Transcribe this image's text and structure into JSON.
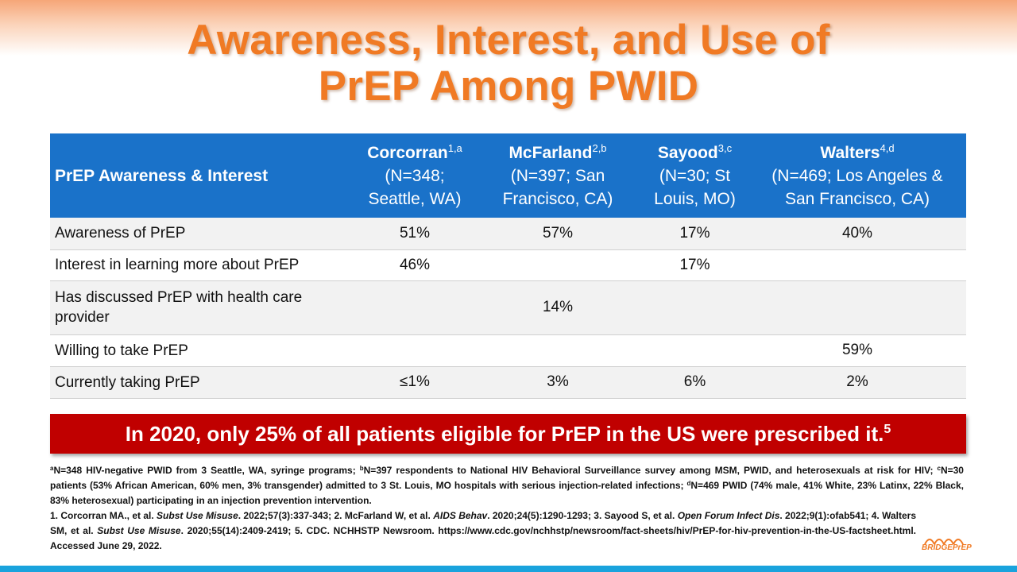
{
  "title": {
    "line1": "Awareness, Interest, and Use of",
    "line2": "PrEP Among PWID"
  },
  "table": {
    "header_label": "PrEP Awareness & Interest",
    "columns": [
      {
        "name": "Corcorran",
        "sup": "1,a",
        "line1": "(N=348;",
        "line2": "Seattle, WA)"
      },
      {
        "name": "McFarland",
        "sup": "2,b",
        "line1": "(N=397; San",
        "line2": "Francisco, CA)"
      },
      {
        "name": "Sayood",
        "sup": "3,c",
        "line1": "(N=30; St",
        "line2": "Louis, MO)"
      },
      {
        "name": "Walters",
        "sup": "4,d",
        "line1": "(N=469; Los Angeles &",
        "line2": "San Francisco, CA)"
      }
    ],
    "rows": [
      {
        "label": "Awareness of PrEP",
        "values": [
          "51%",
          "57%",
          "17%",
          "40%"
        ]
      },
      {
        "label": "Interest in learning more about PrEP",
        "values": [
          "46%",
          "",
          "17%",
          ""
        ]
      },
      {
        "label": "Has discussed PrEP with health care provider",
        "values": [
          "",
          "14%",
          "",
          ""
        ]
      },
      {
        "label": "Willing to take PrEP",
        "values": [
          "",
          "",
          "",
          "59%"
        ]
      },
      {
        "label": "Currently taking PrEP",
        "values": [
          "≤1%",
          "3%",
          "6%",
          "2%"
        ]
      }
    ]
  },
  "banner": {
    "text": "In 2020, only 25% of all patients eligible for PrEP in the US were prescribed it.",
    "sup": "5"
  },
  "footnotes": {
    "a_sup": "a",
    "a_text": "N=348 HIV-negative PWID from 3 Seattle, WA, syringe programs; ",
    "b_sup": "b",
    "b_text": "N=397 respondents to National HIV Behavioral Surveillance survey among MSM, PWID, and heterosexuals at risk for HIV; ",
    "c_sup": "c",
    "c_text": "N=30 patients (53% African American, 60% men, 3% transgender) admitted to 3 St. Louis, MO hospitals with serious injection-related infections; ",
    "d_sup": "d",
    "d_text": "N=469 PWID (74% male, 41% White, 23% Latinx, 22% Black, 83% heterosexual) participating in an injection prevention intervention.",
    "ref1_pre": "1. Corcorran MA., et al. ",
    "ref1_journal": "Subst Use Misuse",
    "ref1_post": ". 2022;57(3):337-343;  2. McFarland W, et al. ",
    "ref2_journal": "AIDS Behav",
    "ref2_post": ". 2020;24(5):1290-1293;  3. Sayood S, et al. ",
    "ref3_journal": "Open Forum Infect Dis",
    "ref3_post": ". 2022;9(1):ofab541;  4. Walters SM, et al. ",
    "ref4_journal": "Subst Use Misuse",
    "ref4_post": ". 2020;55(14):2409-2419;  5. CDC. NCHHSTP Newsroom. https://www.cdc.gov/nchhstp/newsroom/fact-sheets/hiv/PrEP-for-hiv-prevention-in-the-US-factsheet.html. Accessed June 29, 2022."
  },
  "logo": {
    "text": "BRIDGEPrEP"
  },
  "colors": {
    "title": "#f07a24",
    "header": "#1a72c9",
    "banner": "#c00000",
    "accent_bar": "#1aa3dd"
  }
}
